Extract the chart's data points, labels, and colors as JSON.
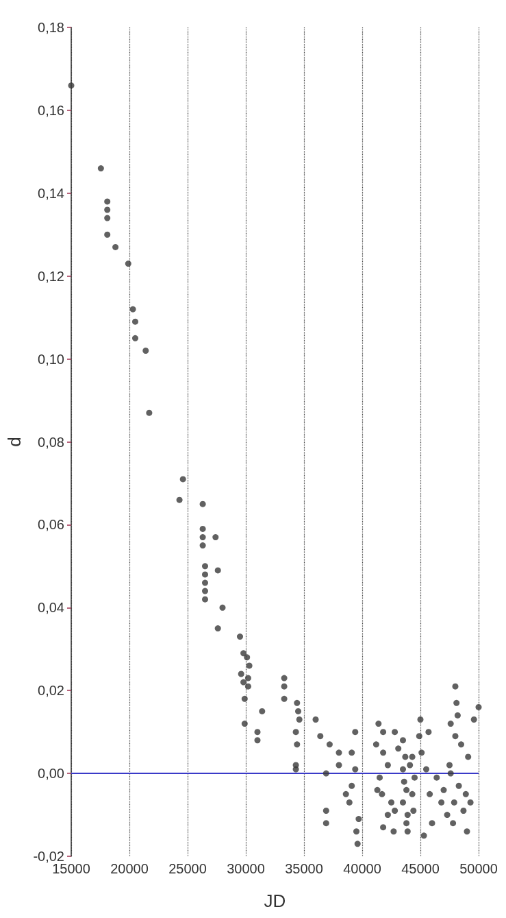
{
  "chart_data": {
    "type": "scatter",
    "xlabel": "JD",
    "ylabel": "d",
    "xlim": [
      15000,
      50000
    ],
    "xticks": [
      15000,
      20000,
      25000,
      30000,
      35000,
      40000,
      45000,
      50000
    ],
    "ylim": [
      -0.02,
      0.18
    ],
    "yticks": [
      {
        "value": -0.02,
        "label": "-0,02"
      },
      {
        "value": 0,
        "label": "0,00"
      },
      {
        "value": 0.02,
        "label": "0,02"
      },
      {
        "value": 0.04,
        "label": "0,04"
      },
      {
        "value": 0.06,
        "label": "0,06"
      },
      {
        "value": 0.08,
        "label": "0,08"
      },
      {
        "value": 0.1,
        "label": "0,10"
      },
      {
        "value": 0.12,
        "label": "0,12"
      },
      {
        "value": 0.14,
        "label": "0,14"
      },
      {
        "value": 0.16,
        "label": "0,16"
      },
      {
        "value": 0.18,
        "label": "0,18"
      }
    ],
    "grid": "x",
    "marker": "circle",
    "ref_lines": [
      {
        "axis": "y",
        "value": 0,
        "color": "#3a3ac8"
      }
    ],
    "series": [
      {
        "color": "#3a3a3a",
        "x": [
          15000,
          17550,
          18100,
          18100,
          18100,
          18100,
          18800,
          19900,
          20300,
          20500,
          20500,
          21400,
          21700,
          24600,
          24300,
          26300,
          26300,
          26300,
          26300,
          27400,
          27600,
          26500,
          26500,
          26500,
          26500,
          26500,
          28000,
          27600,
          29500,
          29800,
          30100,
          30300,
          29600,
          29800,
          30200,
          30200,
          29900,
          31400,
          29900,
          31000,
          31000,
          33300,
          33300,
          33300,
          34400,
          34500,
          34600,
          34400,
          34300,
          34300,
          34300,
          36000,
          36400,
          37200,
          38000,
          38000,
          36900,
          36900,
          36900,
          39400,
          39100,
          39400,
          39100,
          38600,
          38900,
          39700,
          39500,
          39600,
          41400,
          41800,
          41200,
          41800,
          42200,
          41500,
          41300,
          41700,
          42500,
          42800,
          42200,
          41800,
          42700,
          42800,
          43500,
          43100,
          43700,
          43500,
          43600,
          43800,
          43500,
          43900,
          43800,
          44300,
          44100,
          44500,
          44300,
          44400,
          43900,
          44900,
          45100,
          45000,
          45700,
          45500,
          45800,
          46000,
          45300,
          46400,
          46800,
          48000,
          48100,
          48200,
          47600,
          48000,
          48500,
          49100,
          47500,
          47600,
          48300,
          48900,
          49300,
          48700,
          47300,
          47000,
          49600,
          50000,
          47800,
          49000,
          47900
        ],
        "values": [
          0.166,
          0.146,
          0.138,
          0.136,
          0.134,
          0.13,
          0.127,
          0.123,
          0.112,
          0.109,
          0.105,
          0.102,
          0.087,
          0.071,
          0.066,
          0.065,
          0.059,
          0.057,
          0.055,
          0.057,
          0.049,
          0.05,
          0.048,
          0.046,
          0.044,
          0.042,
          0.04,
          0.035,
          0.033,
          0.029,
          0.028,
          0.026,
          0.024,
          0.022,
          0.023,
          0.021,
          0.018,
          0.015,
          0.012,
          0.01,
          0.008,
          0.023,
          0.021,
          0.018,
          0.017,
          0.015,
          0.013,
          0.007,
          0.01,
          0.002,
          0.001,
          0.013,
          0.009,
          0.007,
          0.005,
          0.002,
          0.0,
          -0.009,
          -0.012,
          0.01,
          0.005,
          0.001,
          -0.003,
          -0.005,
          -0.007,
          -0.011,
          -0.014,
          -0.017,
          0.012,
          0.01,
          0.007,
          0.005,
          0.002,
          -0.001,
          -0.004,
          -0.005,
          -0.007,
          -0.009,
          -0.01,
          -0.013,
          -0.014,
          0.01,
          0.008,
          0.006,
          0.004,
          0.001,
          -0.002,
          -0.004,
          -0.007,
          -0.01,
          -0.012,
          0.004,
          0.002,
          -0.001,
          -0.005,
          -0.009,
          -0.014,
          0.009,
          0.005,
          0.013,
          0.01,
          0.001,
          -0.005,
          -0.012,
          -0.015,
          -0.001,
          -0.007,
          0.021,
          0.017,
          0.014,
          0.012,
          0.009,
          0.007,
          0.004,
          0.002,
          0.0,
          -0.003,
          -0.005,
          -0.007,
          -0.009,
          -0.01,
          -0.004,
          0.013,
          0.016,
          -0.012,
          -0.014,
          -0.007
        ]
      }
    ]
  }
}
